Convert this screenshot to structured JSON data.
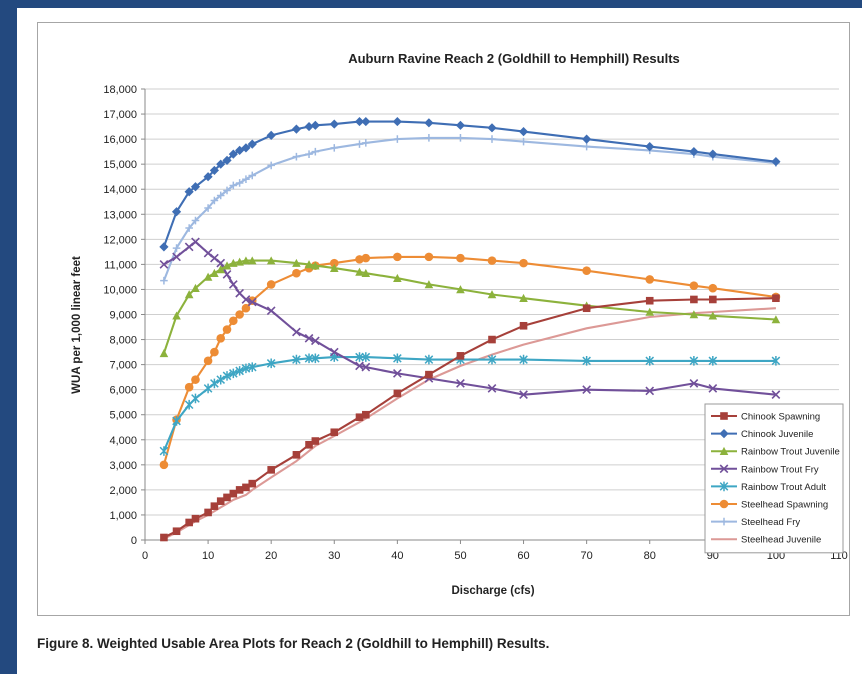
{
  "caption": "Figure 8.  Weighted Usable Area Plots for Reach 2 (Goldhill to Hemphill) Results.",
  "chart_data": {
    "type": "line",
    "title": "Auburn Ravine Reach 2 (Goldhill to Hemphill) Results",
    "xlabel": "Discharge (cfs)",
    "ylabel": "WUA per 1,000 linear feet",
    "xlim": [
      0,
      110
    ],
    "ylim": [
      0,
      18000
    ],
    "xticks": [
      "0",
      "10",
      "20",
      "30",
      "40",
      "50",
      "60",
      "70",
      "80",
      "90",
      "100",
      "110"
    ],
    "yticks": [
      "0",
      "1,000",
      "2,000",
      "3,000",
      "4,000",
      "5,000",
      "6,000",
      "7,000",
      "8,000",
      "9,000",
      "10,000",
      "11,000",
      "12,000",
      "13,000",
      "14,000",
      "15,000",
      "16,000",
      "17,000",
      "18,000"
    ],
    "grid": "horizontal",
    "legend_position": "bottom-right",
    "series": [
      {
        "name": "Chinook Spawning",
        "color": "#a6403a",
        "marker": "square",
        "x": [
          3,
          5,
          7,
          8,
          10,
          11,
          12,
          13,
          14,
          15,
          16,
          17,
          20,
          24,
          26,
          27,
          30,
          34,
          35,
          40,
          45,
          50,
          55,
          60,
          70,
          80,
          87,
          90,
          100
        ],
        "y": [
          100,
          350,
          700,
          850,
          1100,
          1350,
          1550,
          1700,
          1850,
          2000,
          2100,
          2250,
          2800,
          3400,
          3800,
          3950,
          4300,
          4900,
          5000,
          5850,
          6600,
          7350,
          8000,
          8550,
          9250,
          9550,
          9600,
          9600,
          9650
        ]
      },
      {
        "name": "Chinook Juvenile",
        "color": "#3f6eb4",
        "marker": "diamond",
        "x": [
          3,
          5,
          7,
          8,
          10,
          11,
          12,
          13,
          14,
          15,
          16,
          17,
          20,
          24,
          26,
          27,
          30,
          34,
          35,
          40,
          45,
          50,
          55,
          60,
          70,
          80,
          87,
          90,
          100
        ],
        "y": [
          11700,
          13100,
          13900,
          14100,
          14500,
          14750,
          15000,
          15150,
          15400,
          15550,
          15650,
          15800,
          16150,
          16400,
          16500,
          16550,
          16600,
          16700,
          16700,
          16700,
          16650,
          16550,
          16450,
          16300,
          16000,
          15700,
          15500,
          15400,
          15100
        ]
      },
      {
        "name": "Rainbow Trout Juvenile",
        "color": "#8cb23c",
        "marker": "triangle",
        "x": [
          3,
          5,
          7,
          8,
          10,
          11,
          12,
          13,
          14,
          15,
          16,
          17,
          20,
          24,
          26,
          27,
          30,
          34,
          35,
          40,
          45,
          50,
          55,
          60,
          70,
          80,
          87,
          90,
          100
        ],
        "y": [
          7450,
          8950,
          9800,
          10050,
          10500,
          10650,
          10800,
          10950,
          11050,
          11100,
          11150,
          11150,
          11150,
          11050,
          11000,
          10950,
          10850,
          10700,
          10650,
          10450,
          10200,
          10000,
          9800,
          9650,
          9350,
          9100,
          9000,
          8950,
          8800
        ]
      },
      {
        "name": "Rainbow Trout Fry",
        "color": "#71509a",
        "marker": "x",
        "x": [
          3,
          5,
          7,
          8,
          10,
          11,
          12,
          13,
          14,
          15,
          16,
          17,
          20,
          24,
          26,
          27,
          30,
          34,
          35,
          40,
          45,
          50,
          55,
          60,
          70,
          80,
          87,
          90,
          100
        ],
        "y": [
          11000,
          11300,
          11700,
          11900,
          11450,
          11250,
          11050,
          10600,
          10200,
          9850,
          9600,
          9500,
          9150,
          8300,
          8050,
          7950,
          7500,
          6950,
          6900,
          6650,
          6450,
          6250,
          6050,
          5800,
          6000,
          5950,
          6250,
          6050,
          5800
        ]
      },
      {
        "name": "Rainbow Trout Adult",
        "color": "#3ea6c4",
        "marker": "star",
        "x": [
          3,
          5,
          7,
          8,
          10,
          11,
          12,
          13,
          14,
          15,
          16,
          17,
          20,
          24,
          26,
          27,
          30,
          34,
          35,
          40,
          45,
          50,
          55,
          60,
          70,
          80,
          87,
          90,
          100
        ],
        "y": [
          3550,
          4750,
          5400,
          5650,
          6050,
          6250,
          6400,
          6550,
          6650,
          6750,
          6850,
          6900,
          7050,
          7200,
          7250,
          7250,
          7300,
          7300,
          7300,
          7250,
          7200,
          7200,
          7200,
          7200,
          7150,
          7150,
          7150,
          7150,
          7150
        ]
      },
      {
        "name": "Steelhead Spawning",
        "color": "#ed8c35",
        "marker": "circle",
        "x": [
          3,
          5,
          7,
          8,
          10,
          11,
          12,
          13,
          14,
          15,
          16,
          17,
          20,
          24,
          26,
          27,
          30,
          34,
          35,
          40,
          45,
          50,
          55,
          60,
          70,
          80,
          87,
          90,
          100
        ],
        "y": [
          3000,
          4800,
          6100,
          6400,
          7150,
          7500,
          8050,
          8400,
          8750,
          9000,
          9250,
          9550,
          10200,
          10650,
          10850,
          10950,
          11050,
          11200,
          11250,
          11300,
          11300,
          11250,
          11150,
          11050,
          10750,
          10400,
          10150,
          10050,
          9700
        ]
      },
      {
        "name": "Steelhead Fry",
        "color": "#9db8e0",
        "marker": "plus",
        "x": [
          3,
          5,
          7,
          8,
          10,
          11,
          12,
          13,
          14,
          15,
          16,
          17,
          20,
          24,
          26,
          27,
          30,
          34,
          35,
          40,
          45,
          50,
          55,
          60,
          70,
          80,
          87,
          90,
          100
        ],
        "y": [
          10350,
          11650,
          12450,
          12750,
          13250,
          13550,
          13750,
          13950,
          14150,
          14250,
          14400,
          14550,
          14950,
          15300,
          15400,
          15500,
          15650,
          15800,
          15850,
          16000,
          16050,
          16050,
          16000,
          15900,
          15700,
          15550,
          15400,
          15300,
          15050
        ]
      },
      {
        "name": "Steelhead Juvenile",
        "color": "#dc9996",
        "marker": "none",
        "x": [
          3,
          5,
          7,
          8,
          10,
          11,
          12,
          13,
          14,
          15,
          16,
          17,
          20,
          24,
          26,
          27,
          30,
          34,
          35,
          40,
          45,
          50,
          55,
          60,
          70,
          80,
          87,
          90,
          100
        ],
        "y": [
          50,
          300,
          600,
          750,
          1000,
          1150,
          1300,
          1450,
          1600,
          1700,
          1800,
          2000,
          2500,
          3150,
          3550,
          3750,
          4150,
          4700,
          4850,
          5650,
          6400,
          6950,
          7400,
          7800,
          8450,
          8900,
          9050,
          9100,
          9250
        ]
      }
    ]
  }
}
